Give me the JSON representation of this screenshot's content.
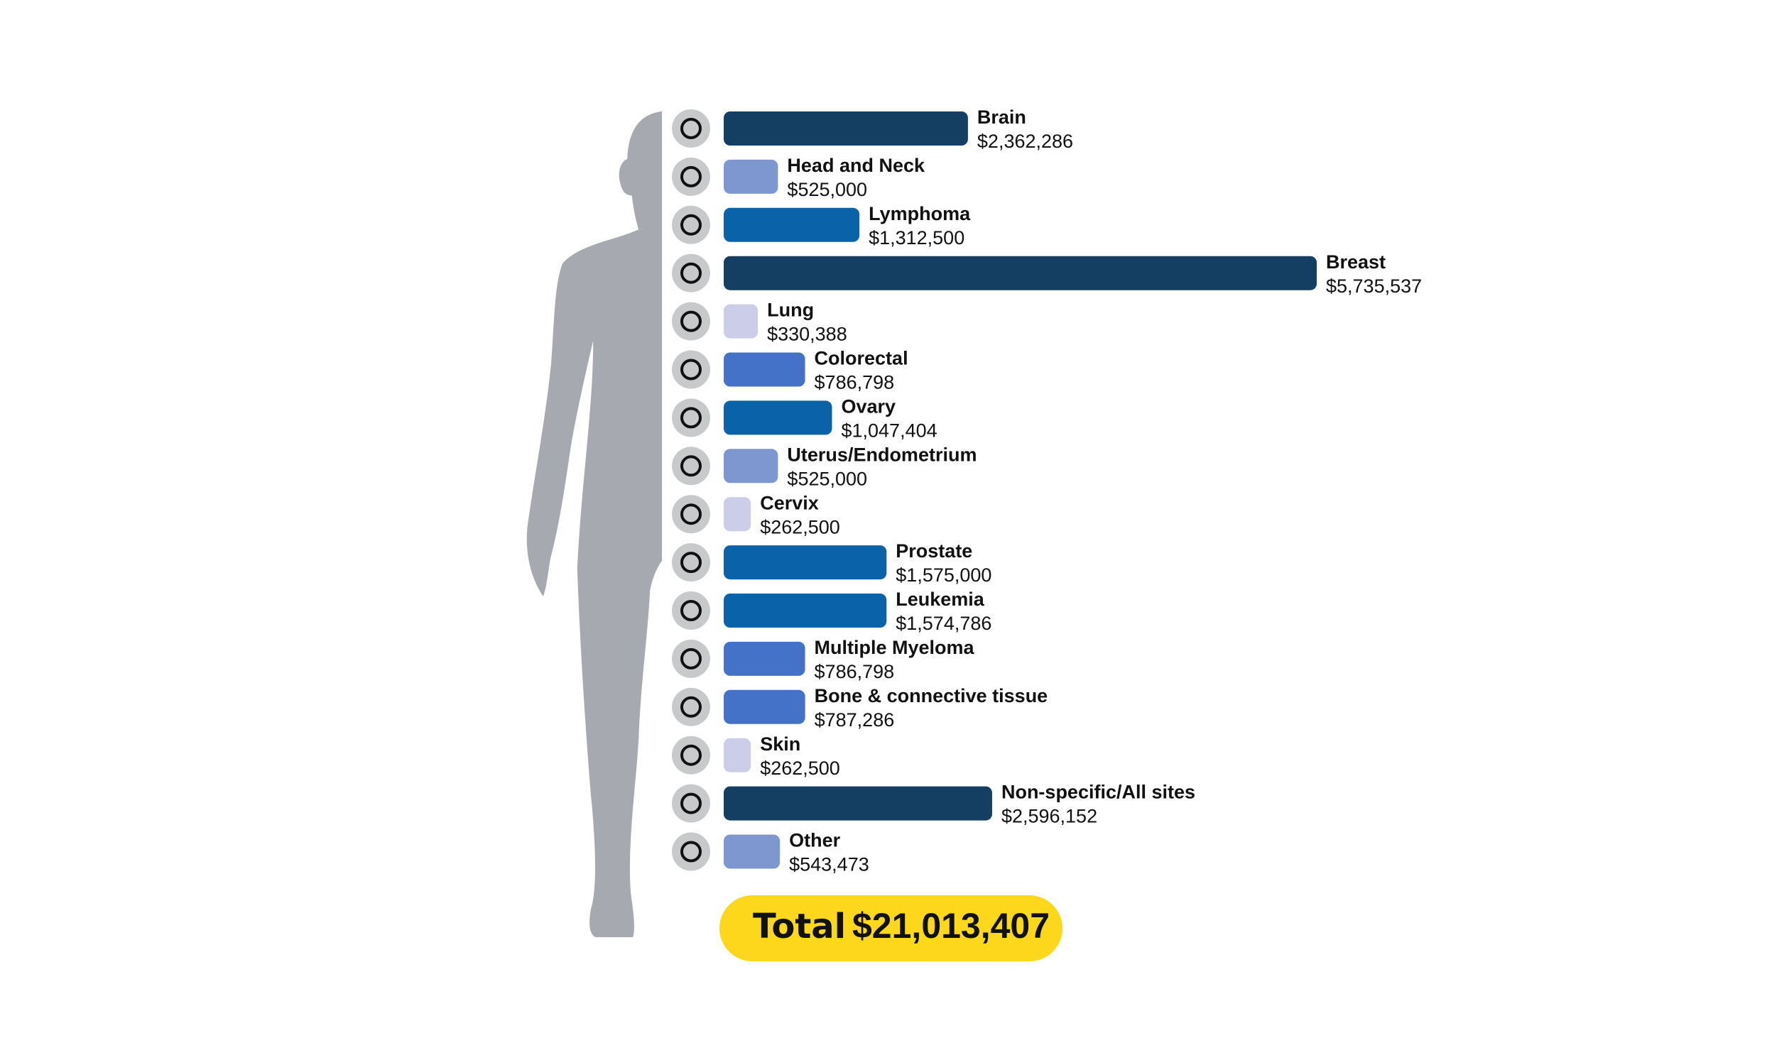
{
  "chart_data": {
    "type": "bar",
    "orientation": "horizontal",
    "categories": [
      "Brain",
      "Head and Neck",
      "Lymphoma",
      "Breast",
      "Lung",
      "Colorectal",
      "Ovary",
      "Uterus/Endometrium",
      "Cervix",
      "Prostate",
      "Leukemia",
      "Multiple Myeloma",
      "Bone & connective tissue",
      "Skin",
      "Non-specific/All sites",
      "Other"
    ],
    "values": [
      2362286,
      525000,
      1312500,
      5735537,
      330388,
      786798,
      1047404,
      525000,
      262500,
      1575000,
      1574786,
      786798,
      787286,
      262500,
      2596152,
      543473
    ],
    "value_labels": [
      "$2,362,286",
      "$525,000",
      "$1,312,500",
      "$5,735,537",
      "$330,388",
      "$786,798",
      "$1,047,404",
      "$525,000",
      "$262,500",
      "$1,575,000",
      "$1,574,786",
      "$786,798",
      "$787,286",
      "$262,500",
      "$2,596,152",
      "$543,473"
    ],
    "colors": [
      "#143f62",
      "#7f97d1",
      "#0a62a8",
      "#143f62",
      "#cccde8",
      "#4472c8",
      "#0a62a8",
      "#7f97d1",
      "#cccde8",
      "#0a62a8",
      "#0a62a8",
      "#4472c8",
      "#4472c8",
      "#cccde8",
      "#143f62",
      "#7f97d1"
    ],
    "total": {
      "label": "Total",
      "value": 21013407,
      "value_label": "$21,013,407"
    }
  }
}
